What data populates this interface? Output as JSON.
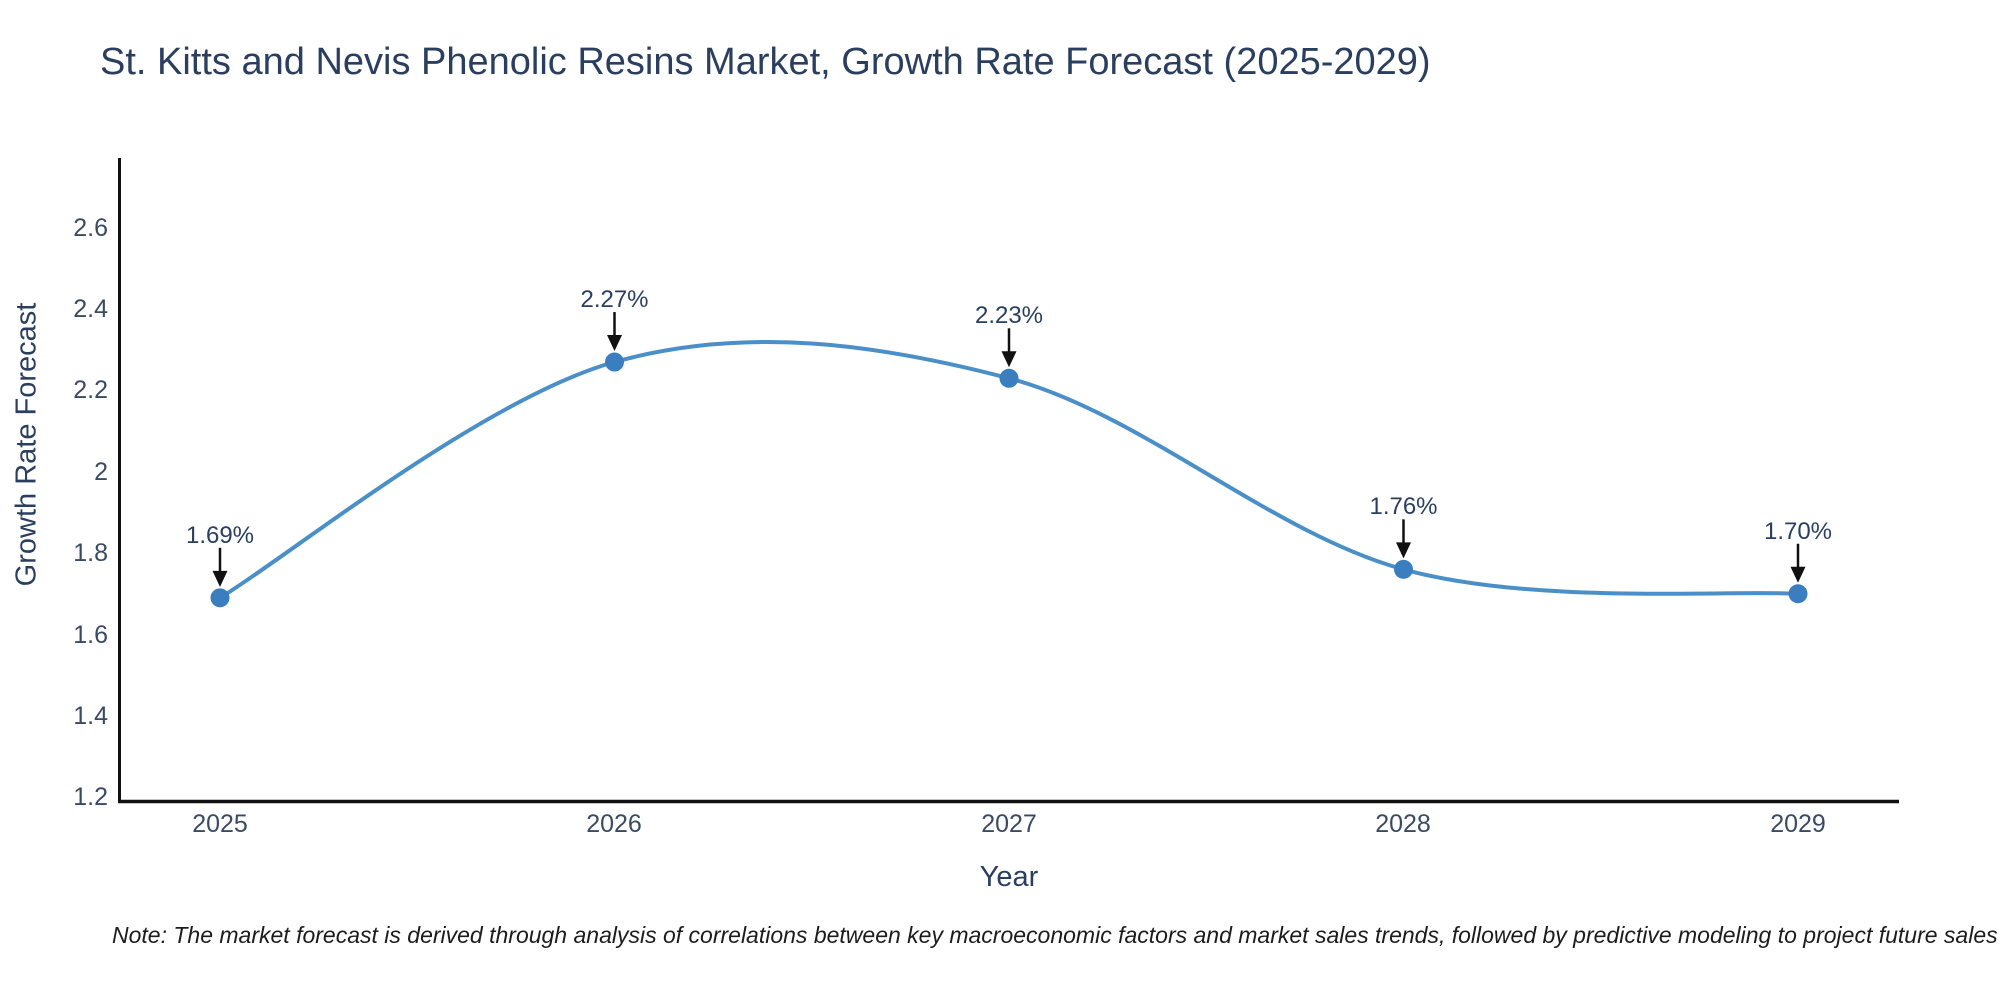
{
  "page": {
    "background": "#ffffff"
  },
  "note": {
    "text": "Note: The market forecast is derived through analysis of correlations between key macroeconomic factors and market sales trends, followed by predictive modeling to project future sales"
  },
  "chart_data": {
    "type": "line",
    "title": "St. Kitts and Nevis Phenolic Resins Market, Growth Rate Forecast (2025-2029)",
    "xlabel": "Year",
    "ylabel": "Growth Rate Forecast",
    "x": [
      2025,
      2026,
      2027,
      2028,
      2029
    ],
    "y": [
      1.69,
      2.27,
      2.23,
      1.76,
      1.7
    ],
    "series": [
      {
        "name": "Growth Rate Forecast",
        "values": [
          1.69,
          2.27,
          2.23,
          1.76,
          1.7
        ]
      }
    ],
    "point_labels": [
      "1.69%",
      "2.27%",
      "2.23%",
      "1.76%",
      "1.70%"
    ],
    "xtick_labels": [
      "2025",
      "2026",
      "2027",
      "2028",
      "2029"
    ],
    "ytick_labels": [
      "2.6",
      "2.4",
      "2.2",
      "2",
      "1.8",
      "1.6",
      "1.4",
      "1.2"
    ],
    "ytick_values": [
      2.6,
      2.4,
      2.2,
      2.0,
      1.8,
      1.6,
      1.4,
      1.2
    ],
    "ylim": [
      1.185,
      2.775
    ],
    "xlim_categories": [
      "2025",
      "2029"
    ],
    "grid": false,
    "legend": "none",
    "line_shape": "spline",
    "colors": {
      "line": "#4a8fc7",
      "marker": "#3a7ebf",
      "text": "#2a3f5f",
      "tick_text": "#3b4a63",
      "axis_line": "#111111",
      "annotation_arrow": "#111111",
      "note_text": "#1c1c1c"
    }
  }
}
